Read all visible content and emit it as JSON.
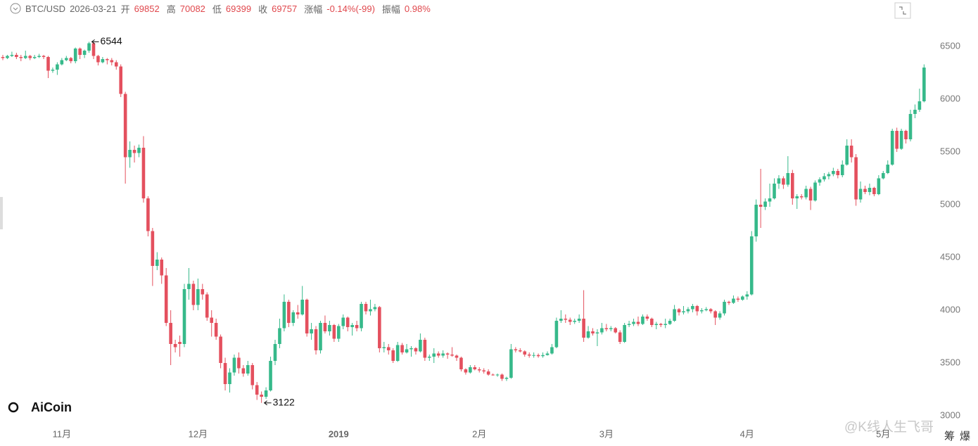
{
  "header": {
    "symbol": "BTC/USD",
    "date": "2026-03-21",
    "open_label": "开",
    "open": "69852",
    "high_label": "高",
    "high": "70082",
    "low_label": "低",
    "low": "69399",
    "close_label": "收",
    "close": "69757",
    "change_label": "涨幅",
    "change": "-0.14%(-99)",
    "amplitude_label": "振幅",
    "amplitude": "0.98%"
  },
  "logo": "AiCoin",
  "watermark": "@K线人生飞哥",
  "corner_buttons": [
    "筹",
    "爆"
  ],
  "chart_data": {
    "type": "candlestick",
    "up_color": "#36b98a",
    "down_color": "#e4505e",
    "annotations": [
      "6544",
      "3122"
    ],
    "ylim": [
      3000,
      6500
    ],
    "yticks": [
      3000,
      3500,
      4000,
      4500,
      5000,
      5500,
      6000,
      6500
    ],
    "categories": [
      null,
      null,
      null,
      null,
      null,
      null,
      null,
      null,
      null,
      null,
      null,
      null,
      null,
      "11月",
      null,
      null,
      null,
      null,
      null,
      null,
      null,
      null,
      null,
      null,
      null,
      null,
      null,
      null,
      null,
      null,
      null,
      null,
      null,
      null,
      null,
      null,
      null,
      null,
      null,
      null,
      null,
      null,
      null,
      "12月",
      null,
      null,
      null,
      null,
      null,
      null,
      null,
      null,
      null,
      null,
      null,
      null,
      null,
      null,
      null,
      null,
      null,
      null,
      null,
      null,
      null,
      null,
      null,
      null,
      null,
      null,
      null,
      null,
      null,
      null,
      "2019",
      null,
      null,
      null,
      null,
      null,
      null,
      null,
      null,
      null,
      null,
      null,
      null,
      null,
      null,
      null,
      null,
      null,
      null,
      null,
      null,
      null,
      null,
      null,
      null,
      null,
      null,
      null,
      null,
      null,
      null,
      "2月",
      null,
      null,
      null,
      null,
      null,
      null,
      null,
      null,
      null,
      null,
      null,
      null,
      null,
      null,
      null,
      null,
      null,
      null,
      null,
      null,
      null,
      null,
      null,
      null,
      null,
      null,
      null,
      "3月",
      null,
      null,
      null,
      null,
      null,
      null,
      null,
      null,
      null,
      null,
      null,
      null,
      null,
      null,
      null,
      null,
      null,
      null,
      null,
      null,
      null,
      null,
      null,
      null,
      null,
      null,
      null,
      null,
      null,
      null,
      "4月",
      null,
      null,
      null,
      null,
      null,
      null,
      null,
      null,
      null,
      null,
      null,
      null,
      null,
      null,
      null,
      null,
      null,
      null,
      null,
      null,
      null,
      null,
      null,
      null,
      null,
      null,
      null,
      null,
      null,
      "5月",
      null,
      null,
      null,
      null,
      null,
      null,
      null,
      null,
      null
    ],
    "open": [
      6400,
      6390,
      6410,
      6420,
      6400,
      6390,
      6410,
      6390,
      6400,
      6410,
      6400,
      6270,
      6280,
      6330,
      6370,
      6390,
      6360,
      6480,
      6420,
      6460,
      6530,
      6410,
      6350,
      6380,
      6370,
      6350,
      6310,
      6050,
      5450,
      5520,
      5490,
      5540,
      5060,
      4750,
      4420,
      4480,
      4330,
      3880,
      3680,
      3700,
      3680,
      4200,
      4250,
      4050,
      4200,
      4150,
      3930,
      3880,
      3750,
      3500,
      3300,
      3410,
      3550,
      3450,
      3400,
      3480,
      3290,
      3200,
      3180,
      3240,
      3520,
      3680,
      3830,
      4080,
      3880,
      3980,
      3960,
      4100,
      3780,
      3820,
      3620,
      3880,
      3800,
      3860,
      3730,
      3850,
      3930,
      3840,
      3860,
      3830,
      4060,
      3990,
      4010,
      4030,
      3640,
      3650,
      3620,
      3520,
      3670,
      3600,
      3630,
      3640,
      3610,
      3720,
      3550,
      3560,
      3590,
      3570,
      3590,
      3580,
      3570,
      3550,
      3440,
      3410,
      3460,
      3440,
      3430,
      3420,
      3390,
      3385,
      3390,
      3350,
      3360,
      3630,
      3620,
      3610,
      3580,
      3570,
      3575,
      3565,
      3575,
      3590,
      3650,
      3900,
      3920,
      3910,
      3890,
      3900,
      3920,
      3740,
      3800,
      3780,
      3790,
      3830,
      3820,
      3830,
      3790,
      3700,
      3860,
      3870,
      3890,
      3870,
      3940,
      3920,
      3860,
      3870,
      3860,
      3870,
      3900,
      4010,
      3980,
      3990,
      4010,
      4040,
      3990,
      4000,
      4010,
      3990,
      3930,
      3970,
      4080,
      4070,
      4110,
      4100,
      4130,
      4150,
      4700,
      5000,
      4980,
      5030,
      5060,
      5200,
      5250,
      5190,
      5300,
      5060,
      5080,
      5070,
      5150,
      5040,
      5210,
      5240,
      5270,
      5290,
      5320,
      5280,
      5380,
      5560,
      5450,
      5050,
      5150,
      5120,
      5160,
      5100,
      5250,
      5300,
      5380,
      5700,
      5530,
      5700,
      5620,
      5860,
      5900,
      5980
    ],
    "high": [
      6420,
      6420,
      6450,
      6440,
      6420,
      6460,
      6420,
      6420,
      6430,
      6420,
      6410,
      6300,
      6350,
      6390,
      6410,
      6400,
      6490,
      6490,
      6470,
      6544,
      6540,
      6420,
      6400,
      6390,
      6390,
      6370,
      6330,
      6070,
      5600,
      5560,
      5570,
      5650,
      5080,
      4780,
      4550,
      4500,
      4400,
      4000,
      3720,
      3760,
      4250,
      4400,
      4280,
      4300,
      4250,
      4170,
      4000,
      3920,
      3770,
      3550,
      3450,
      3580,
      3600,
      3480,
      3520,
      3500,
      3320,
      3230,
      3270,
      3560,
      3720,
      3920,
      4150,
      4100,
      4000,
      4050,
      4230,
      4110,
      3880,
      3850,
      3900,
      3950,
      3900,
      3870,
      3870,
      3960,
      3940,
      3880,
      3900,
      4080,
      4080,
      4100,
      4060,
      4040,
      3700,
      3680,
      3640,
      3700,
      3690,
      3680,
      3660,
      3650,
      3780,
      3740,
      3580,
      3640,
      3610,
      3620,
      3600,
      3650,
      3580,
      3560,
      3450,
      3480,
      3480,
      3460,
      3450,
      3440,
      3400,
      3400,
      3400,
      3370,
      3680,
      3650,
      3640,
      3620,
      3600,
      3600,
      3590,
      3600,
      3610,
      3680,
      3930,
      4000,
      3960,
      3930,
      3920,
      3960,
      4190,
      3850,
      3830,
      3820,
      3880,
      3870,
      3850,
      3840,
      3810,
      3880,
      3900,
      3920,
      3940,
      3960,
      3960,
      3930,
      3890,
      3880,
      3920,
      3920,
      4050,
      4020,
      4040,
      4030,
      4060,
      4050,
      4020,
      4030,
      4020,
      4000,
      3990,
      4100,
      4090,
      4140,
      4130,
      4140,
      4180,
      4750,
      5050,
      5340,
      5060,
      5200,
      5250,
      5280,
      5270,
      5460,
      5330,
      5100,
      5100,
      5180,
      5170,
      5230,
      5260,
      5300,
      5310,
      5350,
      5340,
      5420,
      5620,
      5620,
      5480,
      5220,
      5180,
      5200,
      5170,
      5280,
      5320,
      5420,
      5720,
      5730,
      5720,
      5710,
      5900,
      5950,
      6100,
      6330
    ],
    "low": [
      6370,
      6380,
      6400,
      6380,
      6360,
      6380,
      6370,
      6380,
      6390,
      6380,
      6200,
      6250,
      6230,
      6320,
      6360,
      6340,
      6340,
      6380,
      6390,
      6440,
      6380,
      6320,
      6340,
      6330,
      6320,
      6280,
      6020,
      5200,
      5350,
      5400,
      5450,
      5020,
      4700,
      4230,
      4380,
      4250,
      3850,
      3480,
      3600,
      3560,
      3650,
      4100,
      4000,
      4000,
      4100,
      3900,
      3750,
      3720,
      3450,
      3240,
      3220,
      3380,
      3400,
      3370,
      3380,
      3250,
      3150,
      3122,
      3160,
      3230,
      3480,
      3640,
      3800,
      3840,
      3850,
      3920,
      3950,
      3750,
      3720,
      3580,
      3590,
      3780,
      3760,
      3700,
      3700,
      3820,
      3800,
      3760,
      3800,
      3800,
      3960,
      3950,
      3990,
      3600,
      3600,
      3580,
      3500,
      3510,
      3580,
      3590,
      3560,
      3580,
      3600,
      3520,
      3520,
      3500,
      3550,
      3550,
      3540,
      3560,
      3520,
      3420,
      3390,
      3400,
      3430,
      3410,
      3400,
      3380,
      3380,
      3370,
      3330,
      3330,
      3350,
      3600,
      3600,
      3560,
      3550,
      3550,
      3550,
      3550,
      3570,
      3580,
      3640,
      3880,
      3880,
      3860,
      3870,
      3880,
      3700,
      3730,
      3760,
      3660,
      3770,
      3800,
      3800,
      3780,
      3680,
      3690,
      3840,
      3850,
      3850,
      3860,
      3900,
      3840,
      3820,
      3840,
      3830,
      3860,
      3890,
      3950,
      3960,
      3970,
      3980,
      3950,
      3970,
      3990,
      3970,
      3860,
      3910,
      3950,
      4050,
      4060,
      4080,
      4090,
      4100,
      4140,
      4650,
      4780,
      4950,
      4980,
      5050,
      5150,
      5150,
      5170,
      5000,
      4960,
      5050,
      5050,
      4950,
      5030,
      5180,
      5220,
      5240,
      5270,
      5250,
      5260,
      5370,
      5400,
      4990,
      5020,
      5100,
      5090,
      5080,
      5090,
      5240,
      5290,
      5370,
      5500,
      5520,
      5580,
      5600,
      5820,
      5880,
      5970
    ],
    "close": [
      6390,
      6410,
      6420,
      6400,
      6390,
      6410,
      6390,
      6400,
      6410,
      6400,
      6270,
      6280,
      6330,
      6370,
      6390,
      6360,
      6480,
      6420,
      6460,
      6530,
      6410,
      6350,
      6380,
      6370,
      6350,
      6310,
      6050,
      5450,
      5520,
      5490,
      5540,
      5060,
      4750,
      4420,
      4480,
      4330,
      3880,
      3680,
      3650,
      3680,
      4200,
      4250,
      4050,
      4200,
      4150,
      3930,
      3880,
      3750,
      3500,
      3300,
      3410,
      3550,
      3450,
      3400,
      3480,
      3290,
      3200,
      3180,
      3240,
      3520,
      3680,
      3830,
      4080,
      3880,
      3980,
      3960,
      4100,
      3780,
      3820,
      3620,
      3880,
      3800,
      3860,
      3730,
      3850,
      3930,
      3840,
      3860,
      3830,
      4060,
      3990,
      4010,
      4030,
      3640,
      3650,
      3620,
      3520,
      3670,
      3600,
      3630,
      3640,
      3610,
      3720,
      3550,
      3560,
      3590,
      3570,
      3590,
      3580,
      3570,
      3550,
      3440,
      3410,
      3460,
      3440,
      3430,
      3420,
      3390,
      3385,
      3390,
      3350,
      3360,
      3630,
      3620,
      3610,
      3580,
      3570,
      3575,
      3565,
      3575,
      3590,
      3650,
      3900,
      3920,
      3910,
      3890,
      3900,
      3920,
      3740,
      3800,
      3780,
      3790,
      3830,
      3820,
      3830,
      3790,
      3700,
      3860,
      3870,
      3890,
      3870,
      3940,
      3920,
      3860,
      3870,
      3860,
      3870,
      3900,
      4010,
      3980,
      3990,
      4010,
      4040,
      3990,
      4000,
      4010,
      3990,
      3930,
      3970,
      4080,
      4070,
      4110,
      4100,
      4130,
      4150,
      4700,
      5000,
      4980,
      5030,
      5060,
      5200,
      5250,
      5190,
      5300,
      5060,
      5080,
      5070,
      5150,
      5040,
      5210,
      5240,
      5270,
      5290,
      5320,
      5280,
      5380,
      5560,
      5450,
      5050,
      5150,
      5120,
      5160,
      5100,
      5250,
      5300,
      5380,
      5700,
      5530,
      5700,
      5620,
      5860,
      5900,
      5980,
      6300
    ]
  }
}
